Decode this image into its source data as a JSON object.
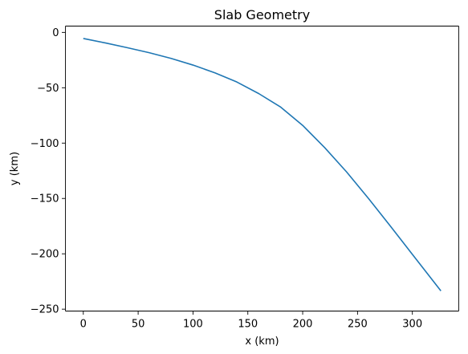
{
  "chart_data": {
    "type": "line",
    "title": "Slab Geometry",
    "xlabel": "x (km)",
    "ylabel": "y (km)",
    "xlim": [
      -16.3,
      342.3
    ],
    "ylim": [
      -251.7,
      5.7
    ],
    "grid": false,
    "xticks": [
      0,
      50,
      100,
      150,
      200,
      250,
      300
    ],
    "yticks": [
      0,
      -50,
      -100,
      -150,
      -200,
      -250
    ],
    "xtick_labels": [
      "0",
      "50",
      "100",
      "150",
      "200",
      "250",
      "300"
    ],
    "ytick_labels": [
      "0",
      "−50",
      "−100",
      "−150",
      "−200",
      "−250"
    ],
    "series": [
      {
        "color": "#1f77b4",
        "x": [
          0,
          20,
          40,
          60,
          80,
          100,
          120,
          140,
          160,
          180,
          200,
          220,
          240,
          260,
          280,
          300,
          326
        ],
        "y": [
          -5.5,
          -9.5,
          -13.8,
          -18.3,
          -23.5,
          -29.5,
          -36.5,
          -44.8,
          -55.3,
          -67.5,
          -84.0,
          -104.0,
          -126.0,
          -150.0,
          -175.0,
          -200.5,
          -233.5
        ]
      }
    ]
  }
}
